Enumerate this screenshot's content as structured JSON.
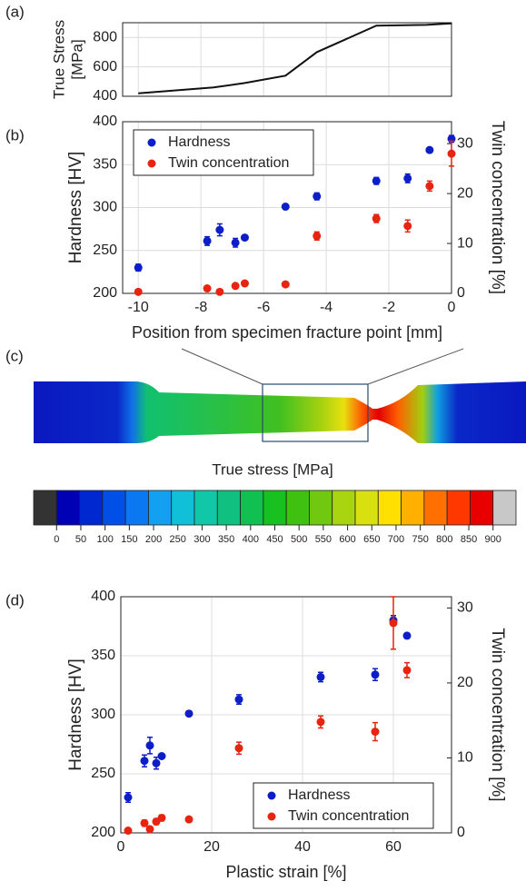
{
  "chart_data": [
    {
      "type": "line",
      "label": "(a)",
      "ylabel_lines": [
        "True Stress",
        "[MPa]"
      ],
      "x": [
        -10,
        -7.6,
        -6.6,
        -5.3,
        -4.3,
        -2.4,
        -0.8,
        0
      ],
      "values": [
        420,
        460,
        490,
        540,
        700,
        880,
        885,
        895
      ],
      "color": "#111111",
      "xlim": [
        -10.5,
        0
      ],
      "xticks": [
        -10,
        -8,
        -6,
        -4,
        -2,
        0
      ],
      "ylim": [
        400,
        900
      ],
      "yticks": [
        400,
        600,
        800
      ],
      "grid": true
    },
    {
      "type": "scatter",
      "label": "(b)",
      "xlabel": "Position from specimen fracture point [mm]",
      "ylabel": "Hardness [HV]",
      "y2label": "Twin concentration [%]",
      "x": [
        -10,
        -7.8,
        -7.4,
        -6.9,
        -6.6,
        -5.3,
        -4.3,
        -2.4,
        -1.4,
        -0.7,
        0
      ],
      "xlim": [
        -10.5,
        0
      ],
      "xticks": [
        -10,
        -8,
        -6,
        -4,
        -2,
        0
      ],
      "ylim": [
        200,
        400
      ],
      "yticks": [
        200,
        250,
        300,
        350,
        400
      ],
      "y2lim": [
        0,
        34.4
      ],
      "y2ticks": [
        0,
        10,
        20,
        30
      ],
      "grid": true,
      "legend": "upper-left",
      "series": [
        {
          "name": "Hardness",
          "color": "#0c1ec8",
          "values": [
            230,
            261,
            274,
            259,
            265,
            301,
            313,
            331,
            334,
            367,
            380
          ],
          "errors": [
            4,
            5,
            7,
            5,
            2,
            2,
            4,
            4,
            5,
            2,
            4
          ]
        },
        {
          "name": "Twin concentration",
          "color": "#e8230f",
          "axis": "y2",
          "values": [
            0.3,
            1,
            0.3,
            1.5,
            2,
            1.8,
            11.5,
            15,
            13.5,
            21.5,
            28
          ],
          "errors": [
            0.3,
            0.4,
            0.3,
            0.4,
            0.4,
            0.3,
            0.8,
            0.8,
            1.2,
            1,
            2.5
          ]
        }
      ]
    },
    {
      "type": "colorbar",
      "label": "(c)",
      "title": "True stress [MPa]",
      "ticks": [
        0,
        50,
        100,
        150,
        200,
        250,
        300,
        350,
        400,
        450,
        500,
        550,
        600,
        650,
        700,
        750,
        800,
        850,
        900
      ],
      "colors": [
        "#333333",
        "#0000b4",
        "#0028d0",
        "#0050e8",
        "#0a78f0",
        "#14a0f0",
        "#10c0d8",
        "#10c8a8",
        "#10c080",
        "#10c050",
        "#18c020",
        "#40c010",
        "#70c810",
        "#a8d410",
        "#d8e010",
        "#ffe000",
        "#ffb000",
        "#ff7000",
        "#ff3800",
        "#e80000",
        "#c8c8c8"
      ]
    },
    {
      "type": "scatter",
      "label": "(d)",
      "xlabel": "Plastic strain [%]",
      "ylabel": "Hardness [HV]",
      "y2label": "Twin concentration [%]",
      "x": [
        1.6,
        5.2,
        6.4,
        7.8,
        9,
        15,
        26,
        44,
        56,
        60,
        63
      ],
      "xlim": [
        0,
        72.8
      ],
      "xticks": [
        0,
        20,
        40,
        60
      ],
      "ylim": [
        200,
        400
      ],
      "yticks": [
        200,
        250,
        300,
        350,
        400
      ],
      "y2lim": [
        0,
        31.5
      ],
      "y2ticks": [
        0,
        10,
        20,
        30
      ],
      "grid": true,
      "legend": "lower-right",
      "series": [
        {
          "name": "Hardness",
          "color": "#0c1ec8",
          "values": [
            230,
            261,
            274,
            259,
            265,
            301,
            313,
            332,
            334,
            380,
            367
          ],
          "errors": [
            4,
            5,
            7,
            5,
            2,
            2,
            4,
            4,
            5,
            4,
            2
          ]
        },
        {
          "name": "Twin concentration",
          "color": "#e8230f",
          "axis": "y2",
          "values": [
            0.3,
            1.3,
            0.5,
            1.5,
            2,
            1.8,
            11.3,
            14.8,
            13.5,
            28,
            21.7
          ],
          "errors": [
            0.3,
            0.4,
            0.3,
            0.4,
            0.4,
            0.3,
            0.8,
            0.8,
            1.2,
            3.5,
            1
          ]
        }
      ]
    }
  ]
}
